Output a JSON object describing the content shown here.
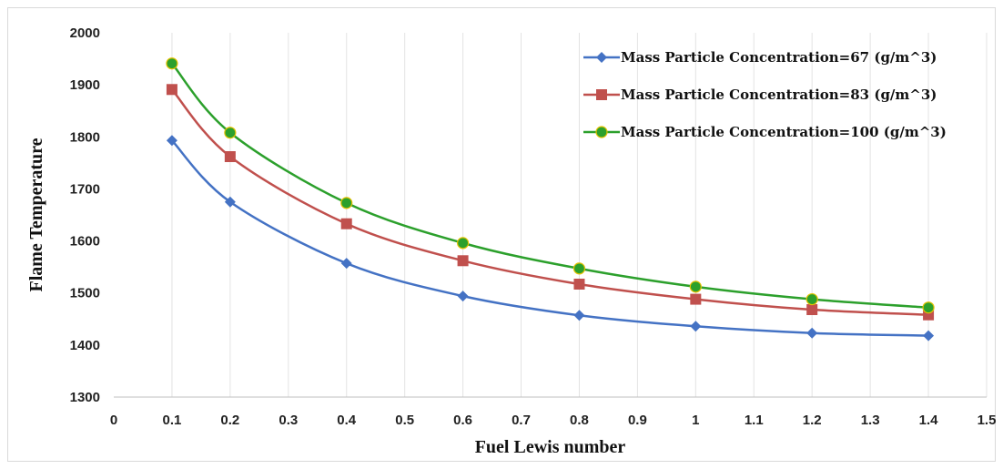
{
  "chart_data": {
    "type": "line",
    "title": "",
    "xlabel": "Fuel Lewis number",
    "ylabel": "Flame Temperature",
    "xlim": [
      0,
      1.5
    ],
    "ylim": [
      1300,
      2000
    ],
    "xticks": [
      0,
      0.1,
      0.2,
      0.3,
      0.4,
      0.5,
      0.6,
      0.7,
      0.8,
      0.9,
      1,
      1.1,
      1.2,
      1.3,
      1.4,
      1.5
    ],
    "xtick_labels": [
      "0",
      "0.1",
      "0.2",
      "0.3",
      "0.4",
      "0.5",
      "0.6",
      "0.7",
      "0.8",
      "0.9",
      "1",
      "1.1",
      "1.2",
      "1.3",
      "1.4",
      "1.5"
    ],
    "yticks": [
      1300,
      1400,
      1500,
      1600,
      1700,
      1800,
      1900,
      2000
    ],
    "ytick_labels": [
      "1300",
      "1400",
      "1500",
      "1600",
      "1700",
      "1800",
      "1900",
      "2000"
    ],
    "grid": "vertical",
    "legend_position": "top-right",
    "series": [
      {
        "name": "Mass Particle Concentration=67 (g/m^3)",
        "color": "#4472c4",
        "marker": "diamond",
        "x": [
          0.1,
          0.2,
          0.4,
          0.6,
          0.8,
          1.0,
          1.2,
          1.4
        ],
        "y": [
          1793,
          1675,
          1557,
          1494,
          1457,
          1436,
          1423,
          1418
        ]
      },
      {
        "name": "Mass Particle Concentration=83 (g/m^3)",
        "color": "#c0504d",
        "marker": "square",
        "x": [
          0.1,
          0.2,
          0.4,
          0.6,
          0.8,
          1.0,
          1.2,
          1.4
        ],
        "y": [
          1891,
          1762,
          1633,
          1562,
          1517,
          1488,
          1468,
          1458
        ]
      },
      {
        "name": "Mass Particle Concentration=100 (g/m^3)",
        "color": "#2ca02c",
        "marker": "circle",
        "x": [
          0.1,
          0.2,
          0.4,
          0.6,
          0.8,
          1.0,
          1.2,
          1.4
        ],
        "y": [
          1941,
          1808,
          1673,
          1596,
          1547,
          1512,
          1488,
          1472
        ]
      }
    ]
  }
}
